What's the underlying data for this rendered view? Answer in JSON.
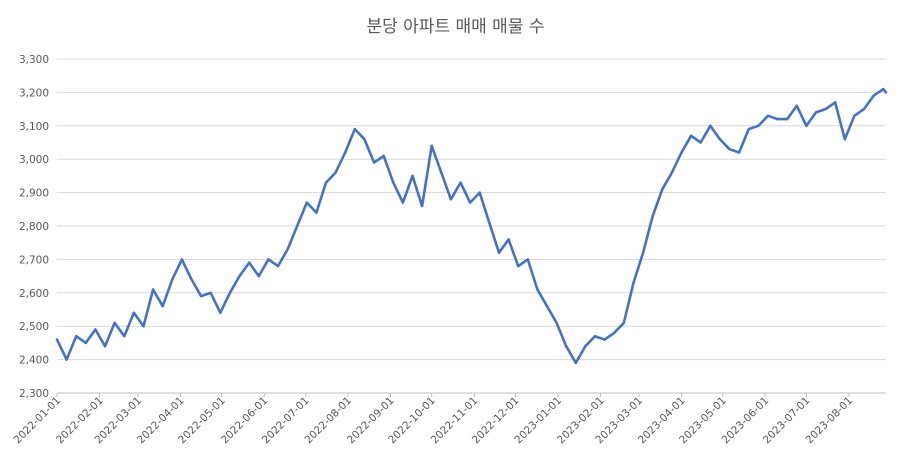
{
  "chart_data": {
    "type": "line",
    "title": "분당 아파트 매매 매물 수",
    "ylim": [
      2300,
      3300
    ],
    "yticks": [
      "2,300",
      "2,400",
      "2,500",
      "2,600",
      "2,700",
      "2,800",
      "2,900",
      "3,000",
      "3,100",
      "3,200",
      "3,300"
    ],
    "ytick_values": [
      2300,
      2400,
      2500,
      2600,
      2700,
      2800,
      2900,
      3000,
      3100,
      3200,
      3300
    ],
    "xlim": [
      "2022-01-01",
      "2023-08-28"
    ],
    "xticks": [
      "2022-01-01",
      "2022-02-01",
      "2022-03-01",
      "2022-04-01",
      "2022-05-01",
      "2022-06-01",
      "2022-07-01",
      "2022-08-01",
      "2022-09-01",
      "2022-10-01",
      "2022-11-01",
      "2022-12-01",
      "2023-01-01",
      "2023-02-01",
      "2023-03-01",
      "2023-04-01",
      "2023-05-01",
      "2023-06-01",
      "2023-07-01",
      "2023-08-01"
    ],
    "grid": true,
    "line_color": "#4472C4",
    "series": [
      {
        "x": [
          "2022-01-01",
          "2022-01-08",
          "2022-01-15",
          "2022-01-22",
          "2022-01-29",
          "2022-02-05",
          "2022-02-12",
          "2022-02-19",
          "2022-02-26",
          "2022-03-05",
          "2022-03-12",
          "2022-03-19",
          "2022-03-26",
          "2022-04-02",
          "2022-04-09",
          "2022-04-16",
          "2022-04-23",
          "2022-04-30",
          "2022-05-07",
          "2022-05-14",
          "2022-05-21",
          "2022-05-28",
          "2022-06-04",
          "2022-06-11",
          "2022-06-18",
          "2022-06-25",
          "2022-07-02",
          "2022-07-09",
          "2022-07-16",
          "2022-07-23",
          "2022-07-30",
          "2022-08-06",
          "2022-08-13",
          "2022-08-20",
          "2022-08-27",
          "2022-09-03",
          "2022-09-10",
          "2022-09-17",
          "2022-09-24",
          "2022-10-01",
          "2022-10-08",
          "2022-10-15",
          "2022-10-22",
          "2022-10-29",
          "2022-11-05",
          "2022-11-12",
          "2022-11-19",
          "2022-11-26",
          "2022-12-03",
          "2022-12-10",
          "2022-12-17",
          "2022-12-24",
          "2022-12-31",
          "2023-01-07",
          "2023-01-14",
          "2023-01-21",
          "2023-01-28",
          "2023-02-04",
          "2023-02-11",
          "2023-02-18",
          "2023-02-25",
          "2023-03-04",
          "2023-03-11",
          "2023-03-18",
          "2023-03-25",
          "2023-04-01",
          "2023-04-08",
          "2023-04-15",
          "2023-04-22",
          "2023-04-29",
          "2023-05-06",
          "2023-05-13",
          "2023-05-20",
          "2023-05-27",
          "2023-06-03",
          "2023-06-10",
          "2023-06-17",
          "2023-06-24",
          "2023-07-01",
          "2023-07-08",
          "2023-07-15",
          "2023-07-22",
          "2023-07-29",
          "2023-08-05",
          "2023-08-12",
          "2023-08-19",
          "2023-08-26",
          "2023-08-28"
        ],
        "values": [
          2460,
          2400,
          2470,
          2450,
          2490,
          2440,
          2510,
          2470,
          2540,
          2500,
          2610,
          2560,
          2640,
          2700,
          2640,
          2590,
          2600,
          2540,
          2600,
          2650,
          2690,
          2650,
          2700,
          2680,
          2730,
          2800,
          2870,
          2840,
          2930,
          2960,
          3020,
          3090,
          3060,
          2990,
          3010,
          2930,
          2870,
          2950,
          2860,
          3040,
          2960,
          2880,
          2930,
          2870,
          2900,
          2810,
          2720,
          2760,
          2680,
          2700,
          2610,
          2560,
          2510,
          2440,
          2390,
          2440,
          2470,
          2460,
          2480,
          2510,
          2630,
          2720,
          2830,
          2910,
          2960,
          3020,
          3070,
          3050,
          3100,
          3060,
          3030,
          3020,
          3090,
          3100,
          3130,
          3120,
          3120,
          3160,
          3100,
          3140,
          3150,
          3170,
          3060,
          3130,
          3150,
          3190,
          3210,
          3200
        ]
      }
    ]
  }
}
